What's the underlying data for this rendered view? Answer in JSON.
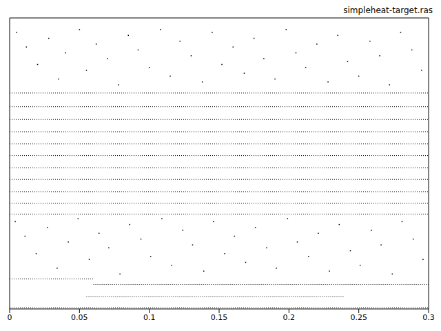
{
  "chart_data": {
    "type": "raster",
    "title": "simpleheat-target.ras",
    "xlim": [
      0,
      0.3
    ],
    "xticks": [
      0,
      0.05,
      0.1,
      0.15,
      0.2,
      0.25,
      0.3
    ],
    "ylim": [
      0,
      100
    ],
    "tick_labels": "x",
    "color": "#000000",
    "marker": "dot",
    "line_style": "dotted",
    "lines": [
      {
        "x": [
          0,
          0.3
        ],
        "y": 74.2
      },
      {
        "x": [
          0,
          0.3
        ],
        "y": 69.5
      },
      {
        "x": [
          0,
          0.3
        ],
        "y": 65.1
      },
      {
        "x": [
          0,
          0.3
        ],
        "y": 60.9
      },
      {
        "x": [
          0,
          0.3
        ],
        "y": 56.7
      },
      {
        "x": [
          0,
          0.3
        ],
        "y": 52.7
      },
      {
        "x": [
          0,
          0.3
        ],
        "y": 48.5
      },
      {
        "x": [
          0,
          0.3
        ],
        "y": 44.5
      },
      {
        "x": [
          0,
          0.3
        ],
        "y": 40.3
      },
      {
        "x": [
          0,
          0.3
        ],
        "y": 36.3
      },
      {
        "x": [
          0,
          0.3
        ],
        "y": 32.6
      },
      {
        "x": [
          0,
          0.06
        ],
        "y": 10.3
      },
      {
        "x": [
          0.06,
          0.3
        ],
        "y": 8.4
      },
      {
        "x": [
          0.055,
          0.24
        ],
        "y": 4.2
      },
      {
        "x": [
          0,
          0.3
        ],
        "y": 0.4
      }
    ],
    "points": {
      "x": [
        0.005,
        0.012,
        0.02,
        0.028,
        0.035,
        0.04,
        0.05,
        0.055,
        0.062,
        0.07,
        0.078,
        0.085,
        0.092,
        0.1,
        0.108,
        0.115,
        0.122,
        0.13,
        0.138,
        0.145,
        0.152,
        0.16,
        0.168,
        0.175,
        0.182,
        0.19,
        0.198,
        0.205,
        0.212,
        0.22,
        0.228,
        0.235,
        0.242,
        0.25,
        0.258,
        0.265,
        0.272,
        0.28,
        0.288,
        0.295,
        0.004,
        0.011,
        0.019,
        0.027,
        0.034,
        0.042,
        0.049,
        0.057,
        0.064,
        0.071,
        0.079,
        0.086,
        0.094,
        0.101,
        0.109,
        0.116,
        0.124,
        0.131,
        0.139,
        0.146,
        0.154,
        0.161,
        0.169,
        0.176,
        0.184,
        0.191,
        0.199,
        0.206,
        0.214,
        0.221,
        0.229,
        0.236,
        0.244,
        0.251,
        0.259,
        0.266,
        0.274,
        0.281,
        0.289,
        0.296
      ],
      "y": [
        95,
        90,
        84,
        93,
        79,
        88,
        96,
        82,
        91,
        86,
        77,
        94,
        89,
        83,
        96,
        80,
        92,
        87,
        78,
        95,
        84,
        90,
        81,
        93,
        86,
        79,
        96,
        88,
        83,
        91,
        78,
        94,
        85,
        80,
        92,
        87,
        77,
        95,
        89,
        82,
        30,
        25,
        19,
        28,
        14,
        23,
        31,
        17,
        26,
        21,
        12,
        29,
        24,
        18,
        31,
        15,
        27,
        22,
        13,
        30,
        19,
        25,
        16,
        28,
        21,
        14,
        31,
        23,
        18,
        26,
        13,
        29,
        20,
        15,
        27,
        22,
        12,
        30,
        24,
        17
      ]
    }
  }
}
